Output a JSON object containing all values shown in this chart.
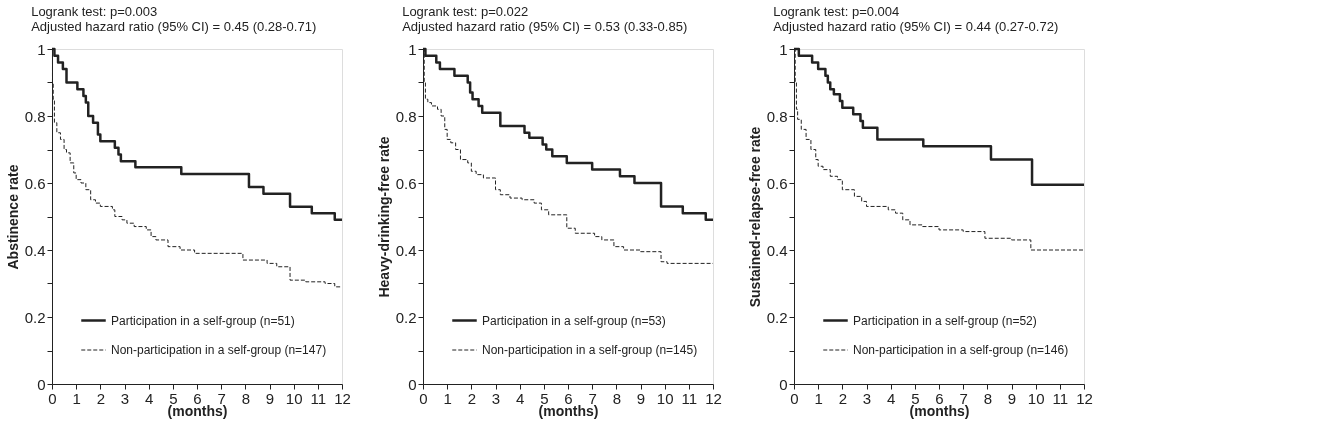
{
  "chart_data": [
    {
      "type": "step",
      "annotations": [
        "Logrank test:  p=0.003",
        "Adjusted hazard ratio (95% CI) = 0.45 (0.28-0.71)"
      ],
      "xlabel": "(months)",
      "ylabel": "Abstinence rate",
      "xlim": [
        0,
        12
      ],
      "xticks": [
        0,
        1,
        2,
        3,
        4,
        5,
        6,
        7,
        8,
        9,
        10,
        11,
        12
      ],
      "ylim": [
        0,
        1
      ],
      "yticks": [
        0,
        {
          "value": 0.1,
          "label": null
        },
        0.2,
        {
          "value": 0.3,
          "label": null
        },
        0.4,
        {
          "value": 0.5,
          "label": null
        },
        0.6,
        {
          "value": 0.7,
          "label": null
        },
        0.8,
        {
          "value": 0.9,
          "label": null
        },
        1
      ],
      "grid": false,
      "legend": "bottom left",
      "marker": "none",
      "series": [
        {
          "name": "Participation in a self-group (n=51)",
          "color": "#222222",
          "line_style": "solid",
          "x": [
            0,
            0.1,
            0.25,
            0.45,
            0.6,
            1.05,
            1.3,
            1.4,
            1.5,
            1.7,
            1.9,
            2.0,
            2.6,
            2.75,
            2.85,
            3.45,
            5.35,
            8.15,
            8.75,
            9.85,
            10.75,
            11.7,
            12
          ],
          "values": [
            1,
            0.98,
            0.96,
            0.94,
            0.9,
            0.88,
            0.86,
            0.84,
            0.8,
            0.78,
            0.745,
            0.725,
            0.705,
            0.685,
            0.665,
            0.647,
            0.627,
            0.588,
            0.568,
            0.529,
            0.51,
            0.49,
            0.49
          ]
        },
        {
          "name": "Non-participation in a self-group (n=147)",
          "color": "#222222",
          "line_style": "dashed",
          "x": [
            0,
            0.02,
            0.05,
            0.1,
            0.2,
            0.35,
            0.5,
            0.6,
            0.75,
            0.9,
            1.0,
            1.2,
            1.4,
            1.6,
            1.8,
            2.0,
            2.5,
            2.6,
            2.9,
            3.1,
            3.4,
            3.9,
            4.1,
            4.3,
            4.8,
            5.3,
            5.9,
            6.2,
            7.9,
            8.9,
            9.3,
            9.85,
            10.1,
            10.5,
            11.3,
            11.7,
            12
          ],
          "values": [
            1,
            0.9,
            0.85,
            0.78,
            0.75,
            0.73,
            0.7,
            0.69,
            0.66,
            0.63,
            0.61,
            0.6,
            0.58,
            0.55,
            0.54,
            0.53,
            0.52,
            0.5,
            0.49,
            0.48,
            0.47,
            0.46,
            0.44,
            0.43,
            0.41,
            0.4,
            0.39,
            0.39,
            0.37,
            0.36,
            0.35,
            0.31,
            0.31,
            0.305,
            0.3,
            0.29,
            0.29
          ]
        }
      ]
    },
    {
      "type": "step",
      "annotations": [
        "Logrank test:  p=0.022",
        "Adjusted hazard ratio (95% CI) = 0.53 (0.33-0.85)"
      ],
      "xlabel": "(months)",
      "ylabel": "Heavy-drinking-free rate",
      "xlim": [
        0,
        12
      ],
      "xticks": [
        0,
        1,
        2,
        3,
        4,
        5,
        6,
        7,
        8,
        9,
        10,
        11,
        12
      ],
      "ylim": [
        0,
        1
      ],
      "yticks": [
        0,
        {
          "value": 0.1,
          "label": null
        },
        0.2,
        {
          "value": 0.3,
          "label": null
        },
        0.4,
        {
          "value": 0.5,
          "label": null
        },
        0.6,
        {
          "value": 0.7,
          "label": null
        },
        0.8,
        {
          "value": 0.9,
          "label": null
        },
        1
      ],
      "grid": false,
      "legend": "bottom left",
      "marker": "none",
      "series": [
        {
          "name": "Participation in a self-group (n=53)",
          "color": "#222222",
          "line_style": "solid",
          "x": [
            0,
            0.1,
            0.55,
            0.7,
            1.3,
            1.85,
            1.95,
            2.05,
            2.3,
            2.45,
            3.2,
            4.2,
            4.4,
            4.95,
            5.1,
            5.35,
            5.95,
            7.0,
            8.15,
            8.75,
            9.85,
            10.75,
            11.7,
            12
          ],
          "values": [
            1,
            0.98,
            0.96,
            0.94,
            0.92,
            0.9,
            0.87,
            0.85,
            0.83,
            0.81,
            0.77,
            0.75,
            0.735,
            0.715,
            0.7,
            0.68,
            0.66,
            0.64,
            0.62,
            0.6,
            0.53,
            0.51,
            0.49,
            0.49
          ]
        },
        {
          "name": "Non-participation in a self-group (n=145)",
          "color": "#222222",
          "line_style": "dashed",
          "x": [
            0,
            0.05,
            0.1,
            0.2,
            0.35,
            0.6,
            0.75,
            0.9,
            1.0,
            1.15,
            1.35,
            1.55,
            1.85,
            2.0,
            2.2,
            2.5,
            3.0,
            3.2,
            3.6,
            4.1,
            4.6,
            4.9,
            5.2,
            5.95,
            6.3,
            7.1,
            7.4,
            7.9,
            8.3,
            9.0,
            9.85,
            10.1,
            12
          ],
          "values": [
            1,
            0.9,
            0.85,
            0.84,
            0.83,
            0.82,
            0.8,
            0.76,
            0.73,
            0.72,
            0.7,
            0.67,
            0.66,
            0.635,
            0.625,
            0.615,
            0.58,
            0.565,
            0.555,
            0.55,
            0.54,
            0.52,
            0.505,
            0.465,
            0.45,
            0.44,
            0.43,
            0.41,
            0.4,
            0.395,
            0.365,
            0.36,
            0.36
          ]
        }
      ]
    },
    {
      "type": "step",
      "annotations": [
        "Logrank test:  p=0.004",
        "Adjusted hazard ratio (95% CI) = 0.44 (0.27-0.72)"
      ],
      "xlabel": "(months)",
      "ylabel": "Sustained-relapse-free rate",
      "xlim": [
        0,
        12
      ],
      "xticks": [
        0,
        1,
        2,
        3,
        4,
        5,
        6,
        7,
        8,
        9,
        10,
        11,
        12
      ],
      "ylim": [
        0,
        1
      ],
      "yticks": [
        0,
        {
          "value": 0.1,
          "label": null
        },
        0.2,
        {
          "value": 0.3,
          "label": null
        },
        0.4,
        {
          "value": 0.5,
          "label": null
        },
        0.6,
        {
          "value": 0.7,
          "label": null
        },
        0.8,
        {
          "value": 0.9,
          "label": null
        },
        1
      ],
      "grid": false,
      "legend": "bottom left",
      "marker": "none",
      "series": [
        {
          "name": "Participation in a self-group (n=52)",
          "color": "#222222",
          "line_style": "solid",
          "x": [
            0,
            0.2,
            0.75,
            1.0,
            1.3,
            1.4,
            1.5,
            1.65,
            1.9,
            2.0,
            2.45,
            2.75,
            2.85,
            3.45,
            5.35,
            8.15,
            9.85,
            12
          ],
          "values": [
            1,
            0.98,
            0.96,
            0.94,
            0.92,
            0.9,
            0.88,
            0.865,
            0.845,
            0.825,
            0.805,
            0.785,
            0.765,
            0.73,
            0.71,
            0.67,
            0.595,
            0.595
          ]
        },
        {
          "name": "Non-participation in a self-group (n=146)",
          "color": "#222222",
          "line_style": "dashed",
          "x": [
            0,
            0.05,
            0.1,
            0.15,
            0.3,
            0.5,
            0.7,
            0.9,
            1.0,
            1.2,
            1.5,
            1.8,
            2.0,
            2.5,
            2.8,
            3.0,
            3.9,
            4.2,
            4.5,
            4.8,
            5.3,
            6.0,
            7.0,
            7.9,
            9.0,
            9.8,
            12
          ],
          "values": [
            1,
            0.9,
            0.82,
            0.79,
            0.76,
            0.73,
            0.7,
            0.67,
            0.65,
            0.64,
            0.62,
            0.61,
            0.58,
            0.56,
            0.545,
            0.53,
            0.52,
            0.51,
            0.49,
            0.475,
            0.47,
            0.46,
            0.455,
            0.435,
            0.43,
            0.4,
            0.4
          ]
        }
      ]
    }
  ]
}
